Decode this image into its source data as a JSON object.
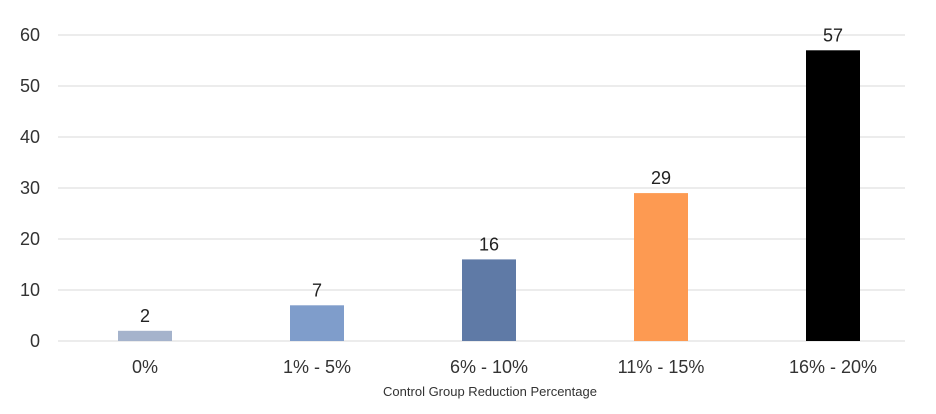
{
  "chart_data": {
    "type": "bar",
    "categories": [
      "0%",
      "1% - 5%",
      "6% - 10%",
      "11% - 15%",
      "16% - 20%"
    ],
    "values": [
      2,
      7,
      16,
      29,
      57
    ],
    "colors": [
      "#a5b3cc",
      "#7f9dcb",
      "#5f7aa6",
      "#fd9a52",
      "#000000"
    ],
    "title": "",
    "xlabel": "Control Group Reduction Percentage",
    "ylabel": "",
    "ylim": [
      0,
      60
    ],
    "yticks": [
      0,
      10,
      20,
      30,
      40,
      50,
      60
    ],
    "grid": true,
    "legend": "none"
  }
}
